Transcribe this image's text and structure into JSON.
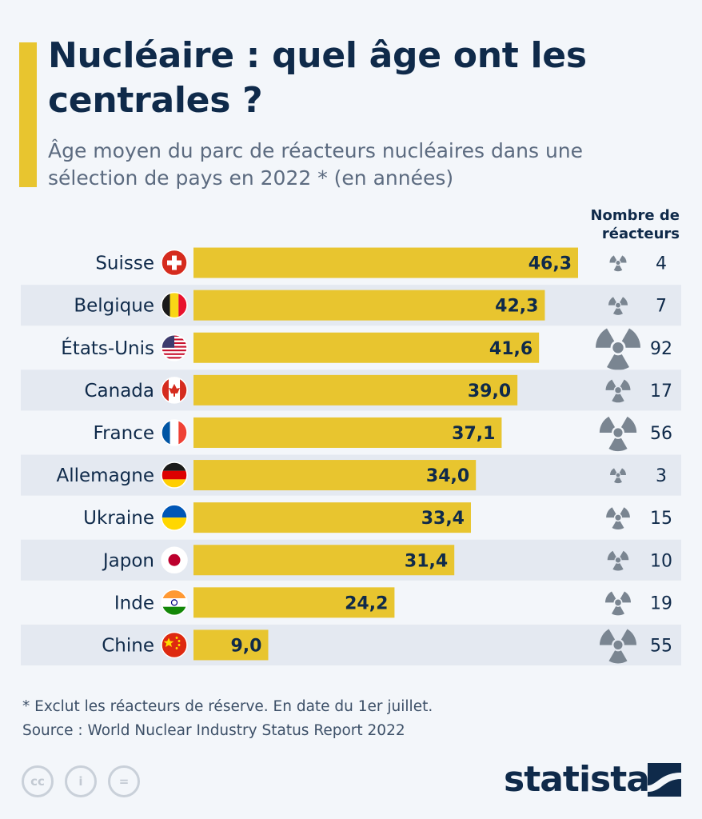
{
  "header": {
    "title": "Nucléaire : quel âge ont les centrales ?",
    "subtitle": "Âge moyen du parc de réacteurs nucléaires dans une sélection de pays en 2022 * (en années)",
    "count_header": "Nombre de réacteurs"
  },
  "chart_data": {
    "type": "bar",
    "orientation": "horizontal",
    "categories": [
      "Suisse",
      "Belgique",
      "États-Unis",
      "Canada",
      "France",
      "Allemagne",
      "Ukraine",
      "Japon",
      "Inde",
      "Chine"
    ],
    "values": [
      46.3,
      42.3,
      41.6,
      39.0,
      37.1,
      34.0,
      33.4,
      31.4,
      24.2,
      9.0
    ],
    "value_labels": [
      "46,3",
      "42,3",
      "41,6",
      "39,0",
      "37,1",
      "34,0",
      "33,4",
      "31,4",
      "24,2",
      "9,0"
    ],
    "reactor_counts": [
      4,
      7,
      92,
      17,
      56,
      3,
      15,
      10,
      19,
      55
    ],
    "reactor_icon": "radiation-icon",
    "xlim": [
      0,
      46.3
    ],
    "grid": false,
    "colors": {
      "bar": "#e8c52f",
      "stripe": "#e4e9f1",
      "icon": "#7a8591"
    }
  },
  "footer": {
    "note": "* Exclut les réacteurs de réserve. En date du 1er juillet.",
    "source": "Source : World Nuclear Industry Status Report 2022",
    "license_icons": [
      "cc-icon",
      "by-icon",
      "nd-icon"
    ],
    "license_labels": [
      "cc",
      "i",
      "="
    ],
    "logo": "statista"
  }
}
